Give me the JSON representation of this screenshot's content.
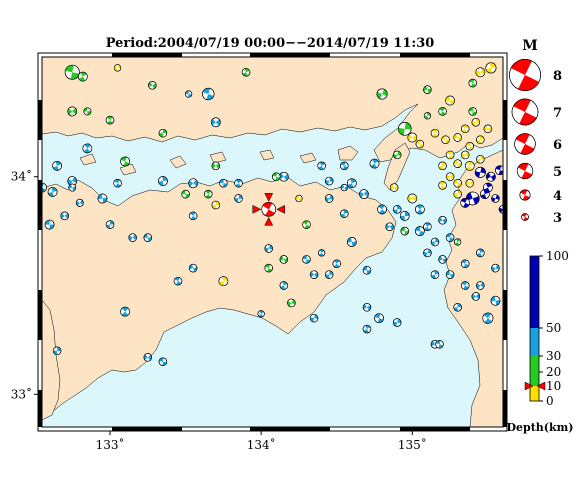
{
  "title": "Period:2004/07/19 00:00−−2014/07/19 11:30",
  "map": {
    "lon_range": [
      132.55,
      135.6
    ],
    "lat_range": [
      32.85,
      34.55
    ],
    "x_ticks": [
      {
        "value": 133,
        "label": "133˚"
      },
      {
        "value": 134,
        "label": "134˚"
      },
      {
        "value": 135,
        "label": "135˚"
      }
    ],
    "y_ticks": [
      {
        "value": 33,
        "label": "33˚"
      },
      {
        "value": 34,
        "label": "34˚"
      }
    ],
    "colors": {
      "land": "#fde4c4",
      "sea": "#dcf7fb",
      "frame": "#000000",
      "coast": "#000000"
    }
  },
  "magnitude_legend": {
    "title": "M",
    "entries": [
      {
        "label": "8",
        "magnitude": 8
      },
      {
        "label": "7",
        "magnitude": 7
      },
      {
        "label": "6",
        "magnitude": 6
      },
      {
        "label": "5",
        "magnitude": 5
      },
      {
        "label": "4",
        "magnitude": 4
      },
      {
        "label": "3",
        "magnitude": 3
      }
    ],
    "color": "#ff0000"
  },
  "depth_scale": {
    "ticks": [
      {
        "value": 100,
        "label": "100"
      },
      {
        "value": 50,
        "label": "50"
      },
      {
        "value": 30,
        "label": "30"
      },
      {
        "value": 20,
        "label": "20"
      },
      {
        "value": 10,
        "label": "10"
      },
      {
        "value": 0,
        "label": "0"
      }
    ],
    "bands": [
      {
        "from": 0,
        "to": 10,
        "color": "#ffe000"
      },
      {
        "from": 10,
        "to": 30,
        "color": "#22cc22"
      },
      {
        "from": 30,
        "to": 50,
        "color": "#1aa0e0"
      },
      {
        "from": 50,
        "to": 100,
        "color": "#0000b0"
      }
    ],
    "label": "Depth(km)",
    "marker_depth": 10
  },
  "selected_event": {
    "lon": 134.05,
    "lat": 33.85,
    "magnitude": 4.6,
    "color": "#ff0000"
  },
  "events": [
    {
      "lon": 132.75,
      "lat": 34.48,
      "m": 4.6,
      "d": 15
    },
    {
      "lon": 132.82,
      "lat": 34.46,
      "m": 3.8,
      "d": 18
    },
    {
      "lon": 133.05,
      "lat": 34.5,
      "m": 3.4,
      "d": 5
    },
    {
      "lon": 133.28,
      "lat": 34.42,
      "m": 3.6,
      "d": 15
    },
    {
      "lon": 133.65,
      "lat": 34.38,
      "m": 4.2,
      "d": 40
    },
    {
      "lon": 133.9,
      "lat": 34.48,
      "m": 3.6,
      "d": 15
    },
    {
      "lon": 134.8,
      "lat": 34.38,
      "m": 4.0,
      "d": 15
    },
    {
      "lon": 135.1,
      "lat": 34.4,
      "m": 3.6,
      "d": 15
    },
    {
      "lon": 135.4,
      "lat": 34.43,
      "m": 3.6,
      "d": 15
    },
    {
      "lon": 135.52,
      "lat": 34.5,
      "m": 4.0,
      "d": 5
    },
    {
      "lon": 135.45,
      "lat": 34.48,
      "m": 3.8,
      "d": 5
    },
    {
      "lon": 135.25,
      "lat": 34.35,
      "m": 3.8,
      "d": 5
    },
    {
      "lon": 135.2,
      "lat": 34.3,
      "m": 3.6,
      "d": 15
    },
    {
      "lon": 135.1,
      "lat": 34.28,
      "m": 3.4,
      "d": 15
    },
    {
      "lon": 132.75,
      "lat": 34.3,
      "m": 3.8,
      "d": 15
    },
    {
      "lon": 132.85,
      "lat": 34.3,
      "m": 3.5,
      "d": 15
    },
    {
      "lon": 133.0,
      "lat": 34.26,
      "m": 3.6,
      "d": 15
    },
    {
      "lon": 133.35,
      "lat": 34.2,
      "m": 3.6,
      "d": 15
    },
    {
      "lon": 133.7,
      "lat": 34.25,
      "m": 3.8,
      "d": 40
    },
    {
      "lon": 133.52,
      "lat": 34.38,
      "m": 3.4,
      "d": 40
    },
    {
      "lon": 132.85,
      "lat": 34.13,
      "m": 3.8,
      "d": 40
    },
    {
      "lon": 134.95,
      "lat": 34.22,
      "m": 4.4,
      "d": 15
    },
    {
      "lon": 135.0,
      "lat": 34.18,
      "m": 3.8,
      "d": 5
    },
    {
      "lon": 135.05,
      "lat": 34.15,
      "m": 3.6,
      "d": 5
    },
    {
      "lon": 134.75,
      "lat": 34.06,
      "m": 3.8,
      "d": 40
    },
    {
      "lon": 134.9,
      "lat": 34.1,
      "m": 3.6,
      "d": 15
    },
    {
      "lon": 134.88,
      "lat": 33.95,
      "m": 3.6,
      "d": 5
    },
    {
      "lon": 133.1,
      "lat": 34.07,
      "m": 3.8,
      "d": 15
    },
    {
      "lon": 132.65,
      "lat": 34.05,
      "m": 3.8,
      "d": 40
    },
    {
      "lon": 132.75,
      "lat": 33.98,
      "m": 3.8,
      "d": 40
    },
    {
      "lon": 132.75,
      "lat": 33.95,
      "m": 3.5,
      "d": 40
    },
    {
      "lon": 132.55,
      "lat": 33.95,
      "m": 3.8,
      "d": 40
    },
    {
      "lon": 132.62,
      "lat": 33.93,
      "m": 3.8,
      "d": 40
    },
    {
      "lon": 132.8,
      "lat": 33.88,
      "m": 3.5,
      "d": 40
    },
    {
      "lon": 132.95,
      "lat": 33.9,
      "m": 3.8,
      "d": 40
    },
    {
      "lon": 133.05,
      "lat": 33.97,
      "m": 3.6,
      "d": 40
    },
    {
      "lon": 133.35,
      "lat": 33.98,
      "m": 3.8,
      "d": 40
    },
    {
      "lon": 133.55,
      "lat": 33.97,
      "m": 3.8,
      "d": 40
    },
    {
      "lon": 133.5,
      "lat": 33.92,
      "m": 3.6,
      "d": 15
    },
    {
      "lon": 133.65,
      "lat": 33.92,
      "m": 3.6,
      "d": 15
    },
    {
      "lon": 133.7,
      "lat": 33.87,
      "m": 3.6,
      "d": 5
    },
    {
      "lon": 133.7,
      "lat": 34.05,
      "m": 3.6,
      "d": 15
    },
    {
      "lon": 133.75,
      "lat": 33.97,
      "m": 3.6,
      "d": 40
    },
    {
      "lon": 133.85,
      "lat": 33.97,
      "m": 3.6,
      "d": 40
    },
    {
      "lon": 133.85,
      "lat": 33.9,
      "m": 3.6,
      "d": 40
    },
    {
      "lon": 134.15,
      "lat": 34.0,
      "m": 3.8,
      "d": 40
    },
    {
      "lon": 134.1,
      "lat": 34.0,
      "m": 3.6,
      "d": 15
    },
    {
      "lon": 134.4,
      "lat": 34.05,
      "m": 3.6,
      "d": 40
    },
    {
      "lon": 134.45,
      "lat": 33.98,
      "m": 3.6,
      "d": 40
    },
    {
      "lon": 134.55,
      "lat": 33.95,
      "m": 3.4,
      "d": 40
    },
    {
      "lon": 134.55,
      "lat": 34.05,
      "m": 3.6,
      "d": 40
    },
    {
      "lon": 134.6,
      "lat": 33.97,
      "m": 3.8,
      "d": 40
    },
    {
      "lon": 134.45,
      "lat": 33.9,
      "m": 3.6,
      "d": 40
    },
    {
      "lon": 134.25,
      "lat": 33.9,
      "m": 3.4,
      "d": 5
    },
    {
      "lon": 134.3,
      "lat": 33.78,
      "m": 3.6,
      "d": 15
    },
    {
      "lon": 134.55,
      "lat": 33.83,
      "m": 3.6,
      "d": 40
    },
    {
      "lon": 134.68,
      "lat": 33.92,
      "m": 3.8,
      "d": 40
    },
    {
      "lon": 134.6,
      "lat": 33.7,
      "m": 3.8,
      "d": 40
    },
    {
      "lon": 134.8,
      "lat": 33.85,
      "m": 3.8,
      "d": 40
    },
    {
      "lon": 134.9,
      "lat": 33.85,
      "m": 3.6,
      "d": 40
    },
    {
      "lon": 135.0,
      "lat": 33.9,
      "m": 3.8,
      "d": 5
    },
    {
      "lon": 134.95,
      "lat": 33.75,
      "m": 3.6,
      "d": 15
    },
    {
      "lon": 135.05,
      "lat": 33.85,
      "m": 3.8,
      "d": 40
    },
    {
      "lon": 134.95,
      "lat": 33.82,
      "m": 3.8,
      "d": 40
    },
    {
      "lon": 134.85,
      "lat": 33.77,
      "m": 3.6,
      "d": 40
    },
    {
      "lon": 135.05,
      "lat": 33.75,
      "m": 3.8,
      "d": 40
    },
    {
      "lon": 135.1,
      "lat": 33.77,
      "m": 3.6,
      "d": 40
    },
    {
      "lon": 135.15,
      "lat": 33.7,
      "m": 3.6,
      "d": 40
    },
    {
      "lon": 135.2,
      "lat": 33.8,
      "m": 3.6,
      "d": 40
    },
    {
      "lon": 135.25,
      "lat": 33.72,
      "m": 3.6,
      "d": 40
    },
    {
      "lon": 135.3,
      "lat": 33.7,
      "m": 3.4,
      "d": 15
    },
    {
      "lon": 135.1,
      "lat": 33.65,
      "m": 3.6,
      "d": 40
    },
    {
      "lon": 135.2,
      "lat": 33.62,
      "m": 3.6,
      "d": 40
    },
    {
      "lon": 135.35,
      "lat": 33.6,
      "m": 3.6,
      "d": 40
    },
    {
      "lon": 135.45,
      "lat": 33.65,
      "m": 3.6,
      "d": 40
    },
    {
      "lon": 135.55,
      "lat": 33.58,
      "m": 3.6,
      "d": 40
    },
    {
      "lon": 135.25,
      "lat": 33.55,
      "m": 3.6,
      "d": 40
    },
    {
      "lon": 135.35,
      "lat": 33.5,
      "m": 3.6,
      "d": 40
    },
    {
      "lon": 135.15,
      "lat": 33.55,
      "m": 3.6,
      "d": 40
    },
    {
      "lon": 135.45,
      "lat": 33.5,
      "m": 3.6,
      "d": 40
    },
    {
      "lon": 135.55,
      "lat": 33.43,
      "m": 3.8,
      "d": 40
    },
    {
      "lon": 135.5,
      "lat": 33.35,
      "m": 4.0,
      "d": 40
    },
    {
      "lon": 135.3,
      "lat": 33.4,
      "m": 3.6,
      "d": 40
    },
    {
      "lon": 135.42,
      "lat": 33.45,
      "m": 3.6,
      "d": 40
    },
    {
      "lon": 134.7,
      "lat": 33.57,
      "m": 3.6,
      "d": 40
    },
    {
      "lon": 134.5,
      "lat": 33.6,
      "m": 3.6,
      "d": 40
    },
    {
      "lon": 134.45,
      "lat": 33.55,
      "m": 3.6,
      "d": 40
    },
    {
      "lon": 134.35,
      "lat": 33.55,
      "m": 3.6,
      "d": 40
    },
    {
      "lon": 134.3,
      "lat": 33.62,
      "m": 3.6,
      "d": 40
    },
    {
      "lon": 134.4,
      "lat": 33.65,
      "m": 3.4,
      "d": 40
    },
    {
      "lon": 134.35,
      "lat": 33.35,
      "m": 3.6,
      "d": 40
    },
    {
      "lon": 134.7,
      "lat": 33.4,
      "m": 3.6,
      "d": 40
    },
    {
      "lon": 134.78,
      "lat": 33.35,
      "m": 3.8,
      "d": 40
    },
    {
      "lon": 134.7,
      "lat": 33.3,
      "m": 3.6,
      "d": 40
    },
    {
      "lon": 134.05,
      "lat": 33.67,
      "m": 3.6,
      "d": 40
    },
    {
      "lon": 134.15,
      "lat": 33.62,
      "m": 3.6,
      "d": 15
    },
    {
      "lon": 134.05,
      "lat": 33.58,
      "m": 3.6,
      "d": 15
    },
    {
      "lon": 134.15,
      "lat": 33.5,
      "m": 3.6,
      "d": 40
    },
    {
      "lon": 134.2,
      "lat": 33.42,
      "m": 3.6,
      "d": 15
    },
    {
      "lon": 133.55,
      "lat": 33.58,
      "m": 3.6,
      "d": 40
    },
    {
      "lon": 133.45,
      "lat": 33.52,
      "m": 3.6,
      "d": 40
    },
    {
      "lon": 133.75,
      "lat": 33.52,
      "m": 3.8,
      "d": 5
    },
    {
      "lon": 133.15,
      "lat": 33.72,
      "m": 3.6,
      "d": 40
    },
    {
      "lon": 133.25,
      "lat": 33.72,
      "m": 3.6,
      "d": 40
    },
    {
      "lon": 133.55,
      "lat": 33.82,
      "m": 3.6,
      "d": 40
    },
    {
      "lon": 133.0,
      "lat": 33.78,
      "m": 3.6,
      "d": 40
    },
    {
      "lon": 132.7,
      "lat": 33.82,
      "m": 3.6,
      "d": 40
    },
    {
      "lon": 132.6,
      "lat": 33.78,
      "m": 3.8,
      "d": 40
    },
    {
      "lon": 133.1,
      "lat": 33.38,
      "m": 3.8,
      "d": 40
    },
    {
      "lon": 132.65,
      "lat": 33.2,
      "m": 3.6,
      "d": 40
    },
    {
      "lon": 133.25,
      "lat": 33.17,
      "m": 3.6,
      "d": 40
    },
    {
      "lon": 133.35,
      "lat": 33.15,
      "m": 3.6,
      "d": 40
    },
    {
      "lon": 134.0,
      "lat": 33.37,
      "m": 3.4,
      "d": 40
    },
    {
      "lon": 134.9,
      "lat": 33.33,
      "m": 3.6,
      "d": 40
    },
    {
      "lon": 135.15,
      "lat": 33.23,
      "m": 3.6,
      "d": 40
    },
    {
      "lon": 135.18,
      "lat": 33.23,
      "m": 3.6,
      "d": 40
    },
    {
      "lon": 135.35,
      "lat": 34.22,
      "m": 3.6,
      "d": 5
    },
    {
      "lon": 135.42,
      "lat": 34.25,
      "m": 3.6,
      "d": 5
    },
    {
      "lon": 135.3,
      "lat": 34.18,
      "m": 3.6,
      "d": 5
    },
    {
      "lon": 135.38,
      "lat": 34.14,
      "m": 3.6,
      "d": 5
    },
    {
      "lon": 135.45,
      "lat": 34.17,
      "m": 3.6,
      "d": 5
    },
    {
      "lon": 135.35,
      "lat": 34.1,
      "m": 3.6,
      "d": 5
    },
    {
      "lon": 135.3,
      "lat": 34.06,
      "m": 3.6,
      "d": 5
    },
    {
      "lon": 135.25,
      "lat": 34.1,
      "m": 3.6,
      "d": 5
    },
    {
      "lon": 135.2,
      "lat": 34.05,
      "m": 3.6,
      "d": 5
    },
    {
      "lon": 135.25,
      "lat": 34.0,
      "m": 3.6,
      "d": 5
    },
    {
      "lon": 135.3,
      "lat": 33.97,
      "m": 3.6,
      "d": 5
    },
    {
      "lon": 135.2,
      "lat": 33.96,
      "m": 3.6,
      "d": 5
    },
    {
      "lon": 135.3,
      "lat": 33.92,
      "m": 3.6,
      "d": 5
    },
    {
      "lon": 135.38,
      "lat": 33.97,
      "m": 3.6,
      "d": 5
    },
    {
      "lon": 135.22,
      "lat": 34.17,
      "m": 3.6,
      "d": 5
    },
    {
      "lon": 135.15,
      "lat": 34.2,
      "m": 3.6,
      "d": 5
    },
    {
      "lon": 135.45,
      "lat": 34.08,
      "m": 3.6,
      "d": 5
    },
    {
      "lon": 135.5,
      "lat": 34.22,
      "m": 3.6,
      "d": 5
    },
    {
      "lon": 135.4,
      "lat": 34.3,
      "m": 3.6,
      "d": 15
    },
    {
      "lon": 135.38,
      "lat": 34.05,
      "m": 3.8,
      "d": 5
    },
    {
      "lon": 135.45,
      "lat": 34.02,
      "m": 4.0,
      "d": 60
    },
    {
      "lon": 135.52,
      "lat": 34.0,
      "m": 3.8,
      "d": 60
    },
    {
      "lon": 135.58,
      "lat": 34.03,
      "m": 3.8,
      "d": 60
    },
    {
      "lon": 135.5,
      "lat": 33.95,
      "m": 3.8,
      "d": 60
    },
    {
      "lon": 135.55,
      "lat": 33.9,
      "m": 3.6,
      "d": 60
    },
    {
      "lon": 135.4,
      "lat": 33.9,
      "m": 4.4,
      "d": 60
    },
    {
      "lon": 135.35,
      "lat": 33.88,
      "m": 3.8,
      "d": 60
    },
    {
      "lon": 135.48,
      "lat": 33.92,
      "m": 3.8,
      "d": 60
    },
    {
      "lon": 135.6,
      "lat": 33.85,
      "m": 3.6,
      "d": 60
    }
  ]
}
